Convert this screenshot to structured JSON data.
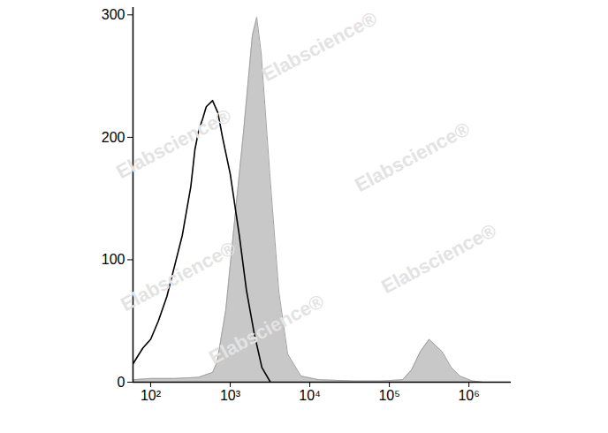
{
  "chart_data": {
    "type": "histogram",
    "watermark": "Elabscience®",
    "log": "x",
    "xlim": [
      60,
      3400000
    ],
    "xticks": [
      {
        "value": 100,
        "label": "10²"
      },
      {
        "value": 1000,
        "label": "10³"
      },
      {
        "value": 10000,
        "label": "10⁴"
      },
      {
        "value": 100000,
        "label": "10⁵"
      },
      {
        "value": 1000000,
        "label": "10⁶"
      }
    ],
    "ylim": [
      0,
      306
    ],
    "yticks": [
      0,
      100,
      200,
      300
    ],
    "series": [
      {
        "type": "area",
        "color": "#c8c8c8",
        "x": [
          60,
          100,
          200,
          400,
          600,
          681,
          880,
          1136,
          1468,
          1896,
          2154,
          2448,
          3162,
          4084,
          5275,
          7743,
          13000,
          36000,
          80000,
          147000,
          190000,
          245000,
          316000,
          380000,
          460000,
          600000,
          770000,
          1100000,
          1500000,
          3400000
        ],
        "values": [
          2,
          3,
          3,
          4,
          8,
          16,
          59,
          132,
          204,
          283,
          298,
          269,
          168,
          74,
          23,
          5,
          2,
          1,
          1,
          2,
          10,
          25,
          35,
          30,
          25,
          12,
          5,
          1,
          0,
          0
        ]
      },
      {
        "type": "line",
        "color": "#000000",
        "x": [
          60,
          70,
          80,
          100,
          125,
          160,
          200,
          250,
          320,
          360,
          400,
          450,
          500,
          600,
          700,
          800,
          1000,
          1300,
          1600,
          2000,
          2500,
          3200
        ],
        "values": [
          15,
          22,
          28,
          35,
          50,
          70,
          95,
          120,
          160,
          190,
          205,
          215,
          225,
          230,
          220,
          200,
          170,
          120,
          75,
          40,
          12,
          0
        ]
      }
    ]
  }
}
